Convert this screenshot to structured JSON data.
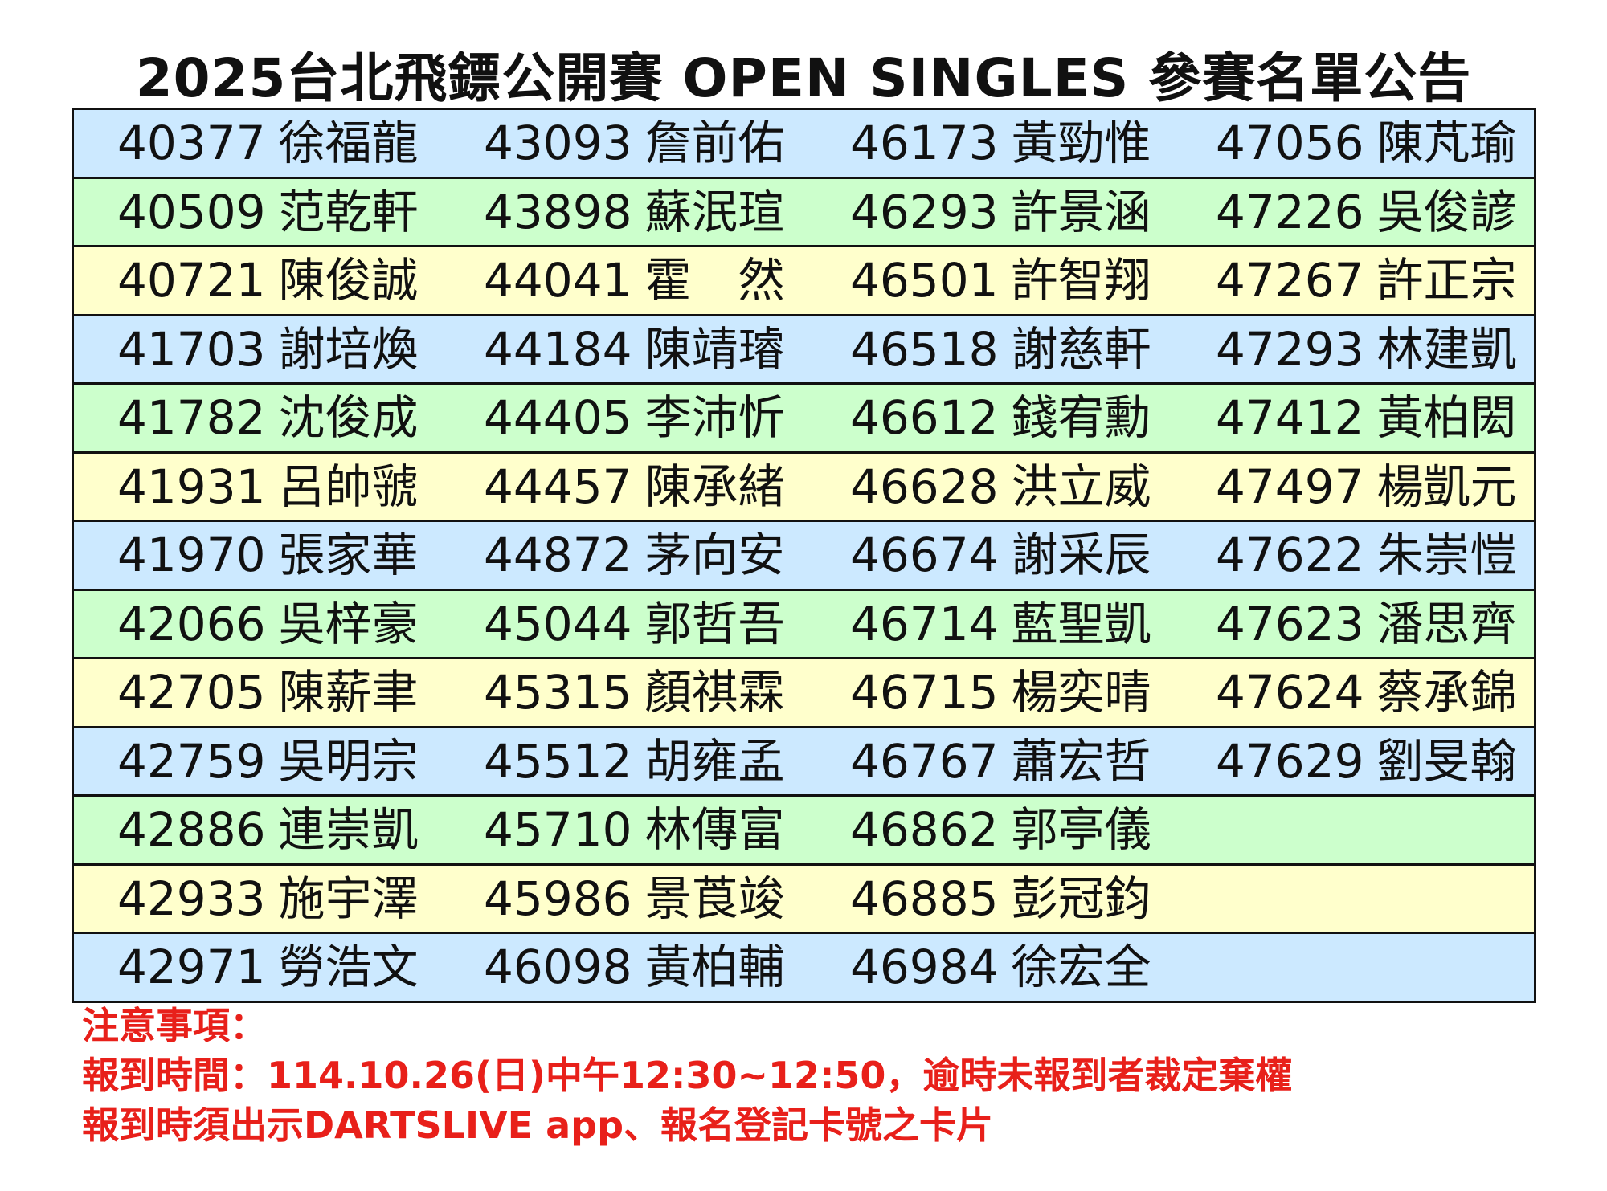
{
  "title": "2025台北飛鏢公開賽 OPEN SINGLES 參賽名單公告",
  "row_colors": [
    "#cce9ff",
    "#ccffcc",
    "#ffffcc"
  ],
  "columns": [
    [
      [
        "40377",
        "徐福龍"
      ],
      [
        "40509",
        "范乾軒"
      ],
      [
        "40721",
        "陳俊誠"
      ],
      [
        "41703",
        "謝培煥"
      ],
      [
        "41782",
        "沈俊成"
      ],
      [
        "41931",
        "呂帥虢"
      ],
      [
        "41970",
        "張家華"
      ],
      [
        "42066",
        "吳梓豪"
      ],
      [
        "42705",
        "陳薪聿"
      ],
      [
        "42759",
        "吳明宗"
      ],
      [
        "42886",
        "連崇凱"
      ],
      [
        "42933",
        "施宇澤"
      ],
      [
        "42971",
        "勞浩文"
      ]
    ],
    [
      [
        "43093",
        "詹前佑"
      ],
      [
        "43898",
        "蘇泯瑄"
      ],
      [
        "44041",
        "霍　然"
      ],
      [
        "44184",
        "陳靖璿"
      ],
      [
        "44405",
        "李沛忻"
      ],
      [
        "44457",
        "陳承緒"
      ],
      [
        "44872",
        "茅向安"
      ],
      [
        "45044",
        "郭哲吾"
      ],
      [
        "45315",
        "顏祺霖"
      ],
      [
        "45512",
        "胡雍孟"
      ],
      [
        "45710",
        "林傳富"
      ],
      [
        "45986",
        "景莨竣"
      ],
      [
        "46098",
        "黃柏輔"
      ]
    ],
    [
      [
        "46173",
        "黃勁惟"
      ],
      [
        "46293",
        "許景涵"
      ],
      [
        "46501",
        "許智翔"
      ],
      [
        "46518",
        "謝慈軒"
      ],
      [
        "46612",
        "錢宥勳"
      ],
      [
        "46628",
        "洪立威"
      ],
      [
        "46674",
        "謝采辰"
      ],
      [
        "46714",
        "藍聖凱"
      ],
      [
        "46715",
        "楊奕晴"
      ],
      [
        "46767",
        "蕭宏哲"
      ],
      [
        "46862",
        "郭亭儀"
      ],
      [
        "46885",
        "彭冠鈞"
      ],
      [
        "46984",
        "徐宏全"
      ]
    ],
    [
      [
        "47056",
        "陳芃瑜"
      ],
      [
        "47226",
        "吳俊諺"
      ],
      [
        "47267",
        "許正宗"
      ],
      [
        "47293",
        "林建凱"
      ],
      [
        "47412",
        "黃柏閎"
      ],
      [
        "47497",
        "楊凱元"
      ],
      [
        "47622",
        "朱崇愷"
      ],
      [
        "47623",
        "潘思齊"
      ],
      [
        "47624",
        "蔡承錦"
      ],
      [
        "47629",
        "劉旻翰"
      ]
    ]
  ],
  "notes": {
    "heading": "注意事項：",
    "line1": "報到時間：114.10.26(日)中午12:30~12:50，逾時未報到者裁定棄權",
    "line2": "報到時須出示DARTSLIVE app、報名登記卡號之卡片"
  }
}
